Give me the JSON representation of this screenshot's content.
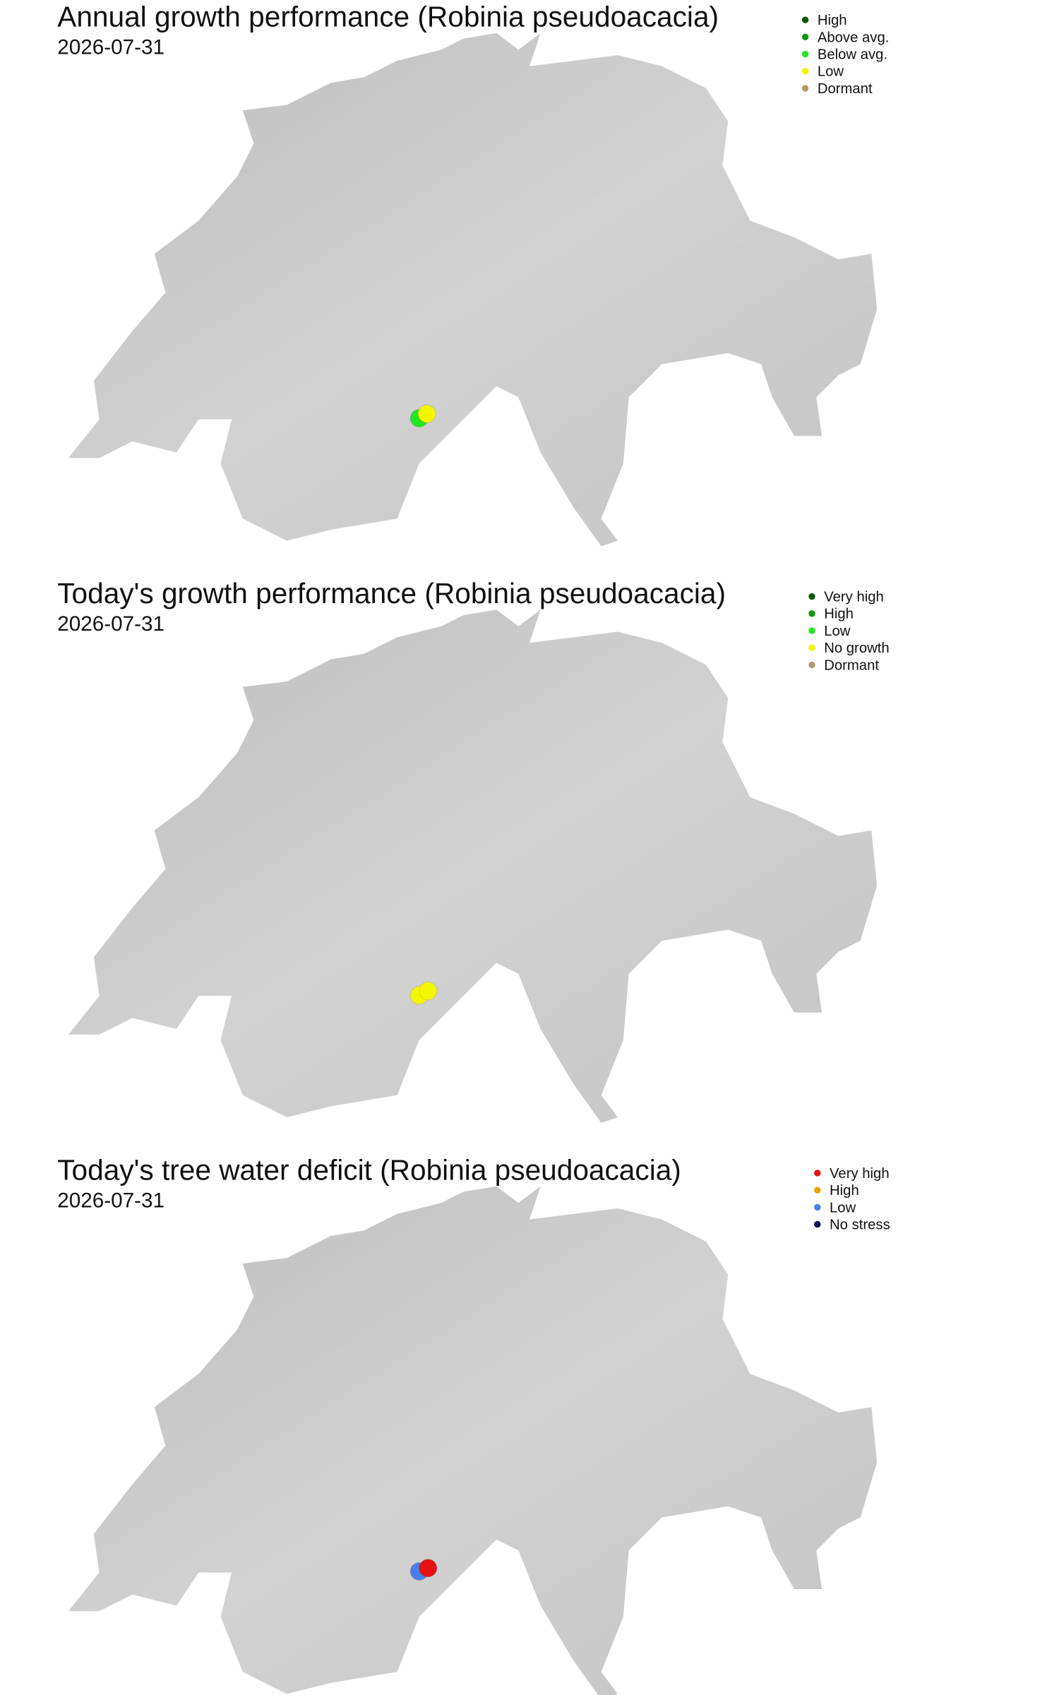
{
  "panels": [
    {
      "title": "Annual growth performance (Robinia pseudoacacia)",
      "date": "2026-07-31",
      "legend": [
        {
          "label": "High",
          "color": "#0a5a0a"
        },
        {
          "label": "Above avg.",
          "color": "#139613"
        },
        {
          "label": "Below avg.",
          "color": "#22e622"
        },
        {
          "label": "Low",
          "color": "#f5f500"
        },
        {
          "label": "Dormant",
          "color": "#b09a70"
        }
      ],
      "points": [
        {
          "color": "#22e622"
        },
        {
          "color": "#f5f500"
        }
      ]
    },
    {
      "title": "Today's growth performance (Robinia pseudoacacia)",
      "date": "2026-07-31",
      "legend": [
        {
          "label": "Very high",
          "color": "#0a5a0a"
        },
        {
          "label": "High",
          "color": "#139613"
        },
        {
          "label": "Low",
          "color": "#22e622"
        },
        {
          "label": "No growth",
          "color": "#f5f500"
        },
        {
          "label": "Dormant",
          "color": "#b09a70"
        }
      ],
      "points": [
        {
          "color": "#f5f500"
        },
        {
          "color": "#f5f500"
        }
      ]
    },
    {
      "title": "Today's tree water deficit (Robinia pseudoacacia)",
      "date": "2026-07-31",
      "legend": [
        {
          "label": "Very high",
          "color": "#e81010"
        },
        {
          "label": "High",
          "color": "#f0a000"
        },
        {
          "label": "Low",
          "color": "#4a7de8"
        },
        {
          "label": "No stress",
          "color": "#0a0a55"
        }
      ],
      "points": [
        {
          "color": "#4a7de8"
        },
        {
          "color": "#e81010"
        }
      ]
    }
  ]
}
